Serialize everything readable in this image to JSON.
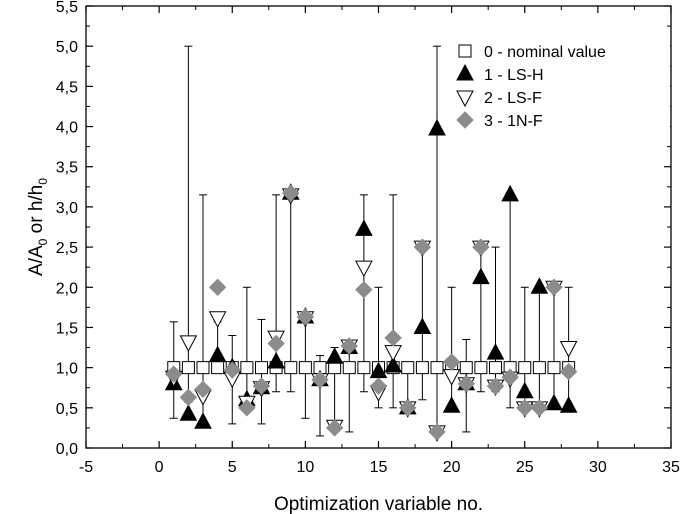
{
  "chart_data": {
    "type": "scatter",
    "title": "",
    "xlabel": "Optimization variable no.",
    "ylabel_main": "A/A",
    "ylabel_sub1": "0",
    "ylabel_mid": " or h/h",
    "ylabel_sub2": "0",
    "xlim": [
      -5,
      35
    ],
    "ylim": [
      0,
      5.5
    ],
    "xticks": [
      -5,
      0,
      5,
      10,
      15,
      20,
      25,
      30,
      35
    ],
    "xtick_labels": [
      "-5",
      "0",
      "5",
      "10",
      "15",
      "20",
      "25",
      "30",
      "35"
    ],
    "yticks": [
      0,
      0.5,
      1,
      1.5,
      2,
      2.5,
      3,
      3.5,
      4,
      4.5,
      5,
      5.5
    ],
    "ytick_labels": [
      "0,0",
      "0,5",
      "1,0",
      "1,5",
      "2,0",
      "2,5",
      "3,0",
      "3,5",
      "4,0",
      "4,5",
      "5,0",
      "5,5"
    ],
    "grid": false,
    "legend_position": "top-right",
    "error_bars": [
      {
        "x": 1,
        "low": 0.37,
        "high": 1.57
      },
      {
        "x": 2,
        "low": 0.57,
        "high": 5.0
      },
      {
        "x": 3,
        "low": 0.3,
        "high": 3.15
      },
      {
        "x": 4,
        "low": 0.95,
        "high": 1.57
      },
      {
        "x": 5,
        "low": 0.3,
        "high": 1.4
      },
      {
        "x": 6,
        "low": 0.5,
        "high": 2.0
      },
      {
        "x": 7,
        "low": 0.3,
        "high": 1.6
      },
      {
        "x": 8,
        "low": 0.7,
        "high": 3.15
      },
      {
        "x": 9,
        "low": 0.7,
        "high": 3.15
      },
      {
        "x": 10,
        "low": 0.37,
        "high": 1.6
      },
      {
        "x": 11,
        "low": 0.15,
        "high": 1.15
      },
      {
        "x": 12,
        "low": 0.23,
        "high": 1.25
      },
      {
        "x": 13,
        "low": 0.2,
        "high": 1.3
      },
      {
        "x": 14,
        "low": 0.7,
        "high": 3.15
      },
      {
        "x": 15,
        "low": 0.5,
        "high": 2.0
      },
      {
        "x": 16,
        "low": 0.5,
        "high": 3.15
      },
      {
        "x": 17,
        "low": 0.45,
        "high": 1.0
      },
      {
        "x": 18,
        "low": 0.6,
        "high": 2.55
      },
      {
        "x": 19,
        "low": 0.2,
        "high": 5.0
      },
      {
        "x": 20,
        "low": 0.45,
        "high": 2.0
      },
      {
        "x": 21,
        "low": 0.2,
        "high": 1.35
      },
      {
        "x": 22,
        "low": 0.7,
        "high": 2.55
      },
      {
        "x": 23,
        "low": 0.7,
        "high": 2.5
      },
      {
        "x": 24,
        "low": 0.5,
        "high": 3.15
      },
      {
        "x": 25,
        "low": 0.45,
        "high": 2.0
      },
      {
        "x": 26,
        "low": 0.45,
        "high": 2.0
      },
      {
        "x": 27,
        "low": 0.5,
        "high": 2.0
      },
      {
        "x": 28,
        "low": 0.5,
        "high": 2.0
      }
    ],
    "series": [
      {
        "name": "0 - nominal value",
        "marker": "open-square",
        "color": "#000000",
        "points": [
          [
            1,
            1.0
          ],
          [
            2,
            1.0
          ],
          [
            3,
            1.0
          ],
          [
            4,
            1.0
          ],
          [
            5,
            1.0
          ],
          [
            6,
            1.0
          ],
          [
            7,
            1.0
          ],
          [
            8,
            1.0
          ],
          [
            9,
            1.0
          ],
          [
            10,
            1.0
          ],
          [
            11,
            1.0
          ],
          [
            12,
            1.0
          ],
          [
            13,
            1.0
          ],
          [
            14,
            1.0
          ],
          [
            15,
            1.0
          ],
          [
            16,
            1.0
          ],
          [
            17,
            1.0
          ],
          [
            18,
            1.0
          ],
          [
            19,
            1.0
          ],
          [
            20,
            1.0
          ],
          [
            21,
            1.0
          ],
          [
            22,
            1.0
          ],
          [
            23,
            1.0
          ],
          [
            24,
            1.0
          ],
          [
            25,
            1.0
          ],
          [
            26,
            1.0
          ],
          [
            27,
            1.0
          ],
          [
            28,
            1.0
          ]
        ]
      },
      {
        "name": "1 - LS-H",
        "marker": "filled-triangle-up",
        "color": "#000000",
        "points": [
          [
            1,
            0.8
          ],
          [
            2,
            0.42
          ],
          [
            3,
            0.32
          ],
          [
            4,
            1.15
          ],
          [
            5,
            1.0
          ],
          [
            6,
            0.6
          ],
          [
            7,
            0.75
          ],
          [
            8,
            1.07
          ],
          [
            9,
            3.17
          ],
          [
            10,
            1.63
          ],
          [
            11,
            0.85
          ],
          [
            12,
            1.13
          ],
          [
            13,
            1.25
          ],
          [
            14,
            2.72
          ],
          [
            15,
            0.95
          ],
          [
            16,
            1.02
          ],
          [
            17,
            0.5
          ],
          [
            18,
            1.5
          ],
          [
            19,
            3.97
          ],
          [
            20,
            0.52
          ],
          [
            21,
            0.8
          ],
          [
            22,
            2.12
          ],
          [
            23,
            1.18
          ],
          [
            24,
            3.15
          ],
          [
            25,
            0.7
          ],
          [
            26,
            2.0
          ],
          [
            27,
            0.55
          ],
          [
            28,
            0.52
          ]
        ]
      },
      {
        "name": "2 - LS-F",
        "marker": "open-triangle-down",
        "color": "#000000",
        "points": [
          [
            1,
            0.88
          ],
          [
            2,
            1.32
          ],
          [
            3,
            0.65
          ],
          [
            4,
            1.62
          ],
          [
            5,
            0.87
          ],
          [
            6,
            0.57
          ],
          [
            7,
            0.75
          ],
          [
            8,
            1.38
          ],
          [
            9,
            3.15
          ],
          [
            10,
            1.62
          ],
          [
            11,
            0.85
          ],
          [
            12,
            0.27
          ],
          [
            13,
            1.27
          ],
          [
            14,
            2.25
          ],
          [
            15,
            0.7
          ],
          [
            16,
            1.2
          ],
          [
            17,
            0.5
          ],
          [
            18,
            2.5
          ],
          [
            19,
            0.2
          ],
          [
            20,
            0.9
          ],
          [
            21,
            0.8
          ],
          [
            22,
            2.5
          ],
          [
            23,
            0.77
          ],
          [
            24,
            0.87
          ],
          [
            25,
            0.5
          ],
          [
            26,
            0.5
          ],
          [
            27,
            2.0
          ],
          [
            28,
            1.25
          ]
        ]
      },
      {
        "name": "3 - 1N-F",
        "marker": "filled-diamond-gray",
        "color": "#8c8c8c",
        "points": [
          [
            1,
            0.92
          ],
          [
            2,
            0.63
          ],
          [
            3,
            0.73
          ],
          [
            4,
            2.0
          ],
          [
            5,
            0.97
          ],
          [
            6,
            0.5
          ],
          [
            7,
            0.77
          ],
          [
            8,
            1.3
          ],
          [
            9,
            3.17
          ],
          [
            10,
            1.63
          ],
          [
            11,
            0.85
          ],
          [
            12,
            0.25
          ],
          [
            13,
            1.27
          ],
          [
            14,
            1.97
          ],
          [
            15,
            0.77
          ],
          [
            16,
            1.37
          ],
          [
            17,
            0.5
          ],
          [
            18,
            2.5
          ],
          [
            19,
            0.2
          ],
          [
            20,
            1.07
          ],
          [
            21,
            0.8
          ],
          [
            22,
            2.5
          ],
          [
            23,
            0.77
          ],
          [
            24,
            0.88
          ],
          [
            25,
            0.5
          ],
          [
            26,
            0.5
          ],
          [
            27,
            2.0
          ],
          [
            28,
            0.95
          ]
        ]
      }
    ]
  }
}
